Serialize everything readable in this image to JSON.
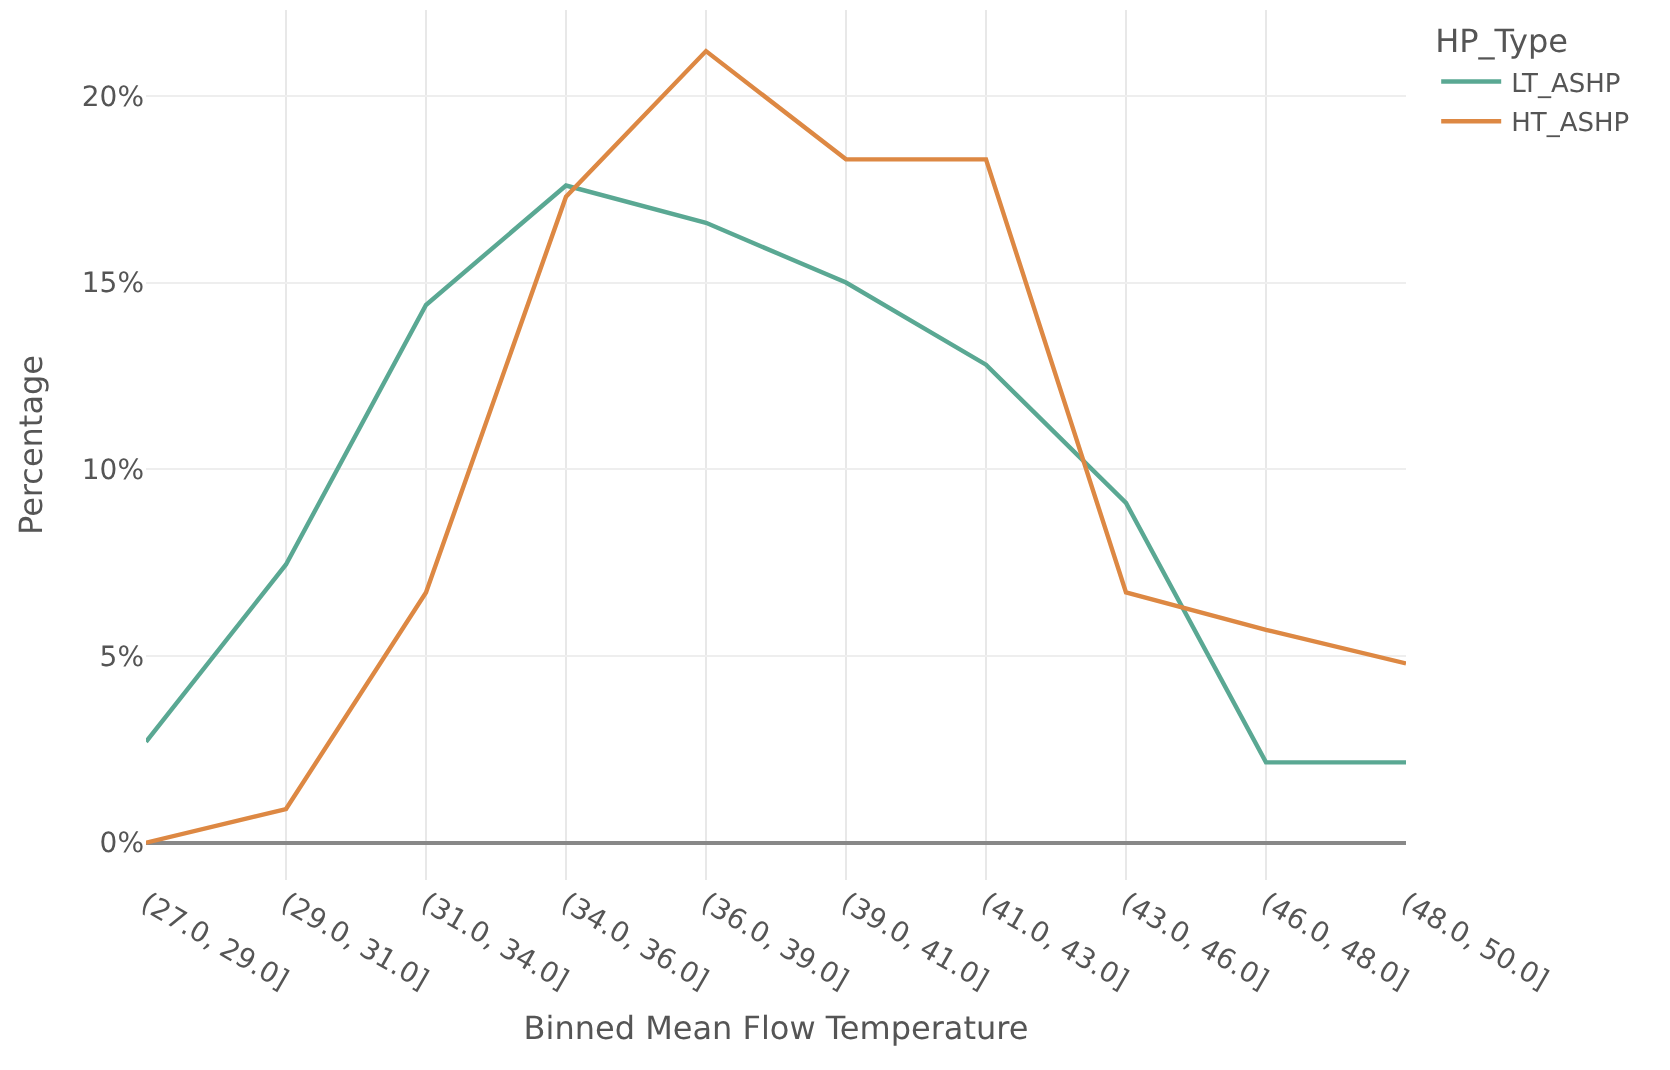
{
  "chart_data": {
    "type": "line",
    "xlabel": "Binned Mean Flow Temperature",
    "ylabel": "Percentage",
    "legend_title": "HP_Type",
    "categories": [
      "(27.0, 29.0]",
      "(29.0, 31.0]",
      "(31.0, 34.0]",
      "(34.0, 36.0]",
      "(36.0, 39.0]",
      "(39.0, 41.0]",
      "(41.0, 43.0]",
      "(43.0, 46.0]",
      "(46.0, 48.0]",
      "(48.0, 50.0]"
    ],
    "series": [
      {
        "name": "LT_ASHP",
        "color": "#5aa893",
        "values": [
          2.7,
          7.45,
          14.4,
          17.6,
          16.6,
          15.0,
          12.8,
          9.1,
          2.15,
          2.15
        ]
      },
      {
        "name": "HT_ASHP",
        "color": "#dd8843",
        "values": [
          0.0,
          0.9,
          6.7,
          17.3,
          21.2,
          18.3,
          18.3,
          6.7,
          5.7,
          4.8
        ]
      }
    ],
    "ylim": [
      -1.0,
      22.3
    ],
    "yticks": [
      {
        "value": 0,
        "label": "0%"
      },
      {
        "value": 5,
        "label": "5%"
      },
      {
        "value": 10,
        "label": "10%"
      },
      {
        "value": 15,
        "label": "15%"
      },
      {
        "value": 20,
        "label": "20%"
      }
    ],
    "grid": true,
    "legend": "top right",
    "marker": "none",
    "line_style": "solid"
  }
}
